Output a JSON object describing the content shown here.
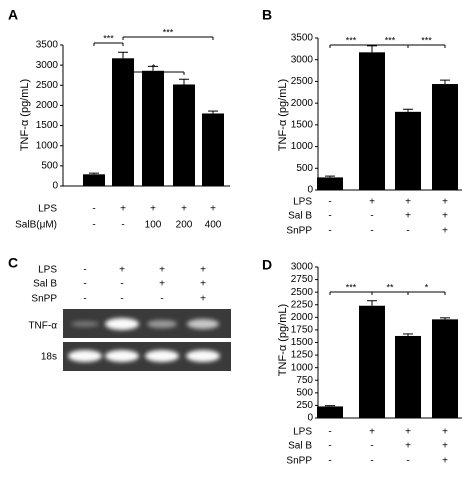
{
  "chart_data": [
    {
      "type": "bar",
      "panel": "A",
      "y_label": "TNF-α (pg/mL)",
      "color": "#000000",
      "values": [
        290,
        3170,
        2860,
        2520,
        1800
      ],
      "errors": [
        30,
        150,
        110,
        130,
        60
      ],
      "ylim": [
        0,
        3500
      ],
      "yticks": [
        0,
        500,
        1000,
        1500,
        2000,
        2500,
        3000,
        3500
      ],
      "conditions": [
        {
          "name": "LPS",
          "values": [
            "-",
            "+",
            "+",
            "+",
            "+"
          ]
        },
        {
          "name": "SalB(μM)",
          "values": [
            "-",
            "-",
            "100",
            "200",
            "400"
          ]
        }
      ],
      "comparisons": [
        {
          "pair": [
            0,
            1
          ],
          "label": "***"
        },
        {
          "pair": [
            1,
            3
          ],
          "label": "*"
        },
        {
          "pair": [
            1,
            4
          ],
          "label": "***"
        }
      ]
    },
    {
      "type": "bar",
      "panel": "B",
      "y_label": "TNF-α (pg/mL)",
      "color": "#000000",
      "values": [
        290,
        3170,
        1800,
        2440
      ],
      "errors": [
        30,
        150,
        60,
        90
      ],
      "ylim": [
        0,
        3500
      ],
      "yticks": [
        0,
        500,
        1000,
        1500,
        2000,
        2500,
        3000,
        3500
      ],
      "conditions": [
        {
          "name": "LPS",
          "values": [
            "-",
            "+",
            "+",
            "+"
          ]
        },
        {
          "name": "Sal B",
          "values": [
            "-",
            "-",
            "+",
            "+"
          ]
        },
        {
          "name": "SnPP",
          "values": [
            "-",
            "-",
            "-",
            "+"
          ]
        }
      ],
      "comparisons": [
        {
          "pair": [
            0,
            1
          ],
          "label": "***"
        },
        {
          "pair": [
            1,
            2
          ],
          "label": "***"
        },
        {
          "pair": [
            2,
            3
          ],
          "label": "***"
        }
      ]
    },
    {
      "type": "bar",
      "panel": "D",
      "y_label": "TNF-α (pg/mL)",
      "color": "#000000",
      "values": [
        230,
        2230,
        1630,
        1960
      ],
      "errors": [
        15,
        100,
        40,
        30
      ],
      "ylim": [
        0,
        3000
      ],
      "yticks": [
        0,
        250,
        500,
        750,
        1000,
        1250,
        1500,
        1750,
        2000,
        2250,
        2500,
        2750,
        3000
      ],
      "conditions": [
        {
          "name": "LPS",
          "values": [
            "-",
            "+",
            "+",
            "+"
          ]
        },
        {
          "name": "Sal B",
          "values": [
            "-",
            "-",
            "+",
            "+"
          ]
        },
        {
          "name": "SnPP",
          "values": [
            "-",
            "-",
            "-",
            "+"
          ]
        }
      ],
      "comparisons": [
        {
          "pair": [
            0,
            1
          ],
          "label": "***"
        },
        {
          "pair": [
            1,
            2
          ],
          "label": "**"
        },
        {
          "pair": [
            2,
            3
          ],
          "label": "*"
        }
      ]
    }
  ],
  "gel": {
    "panel": "C",
    "conditions": [
      {
        "name": "LPS",
        "values": [
          "-",
          "+",
          "+",
          "+"
        ]
      },
      {
        "name": "Sal B",
        "values": [
          "-",
          "-",
          "+",
          "+"
        ]
      },
      {
        "name": "SnPP",
        "values": [
          "-",
          "-",
          "-",
          "+"
        ]
      }
    ],
    "rows": [
      "TNF-α",
      "18s"
    ]
  }
}
